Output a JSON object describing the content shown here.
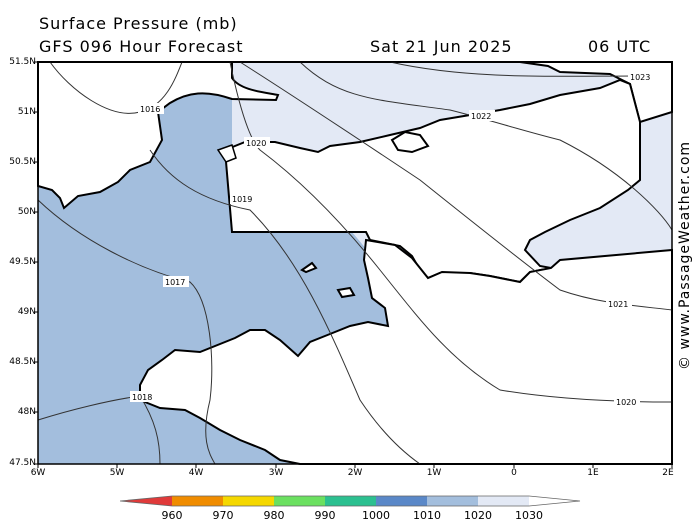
{
  "header": {
    "title": "Surface Pressure (mb)",
    "model": "GFS 096 Hour Forecast",
    "date": "Sat 21 Jun 2025",
    "time": "06 UTC"
  },
  "credit": "© www.PassageWeather.com",
  "map": {
    "lat_labels": [
      "51.5N",
      "51N",
      "50.5N",
      "50N",
      "49.5N",
      "49N",
      "48.5N",
      "48N",
      "47.5N"
    ],
    "lon_labels": [
      "6W",
      "5W",
      "4W",
      "3W",
      "2W",
      "1W",
      "0",
      "1E",
      "2E"
    ],
    "isobar_labels": [
      "1016",
      "1017",
      "1018",
      "1019",
      "1020",
      "1020",
      "1021",
      "1022",
      "1023"
    ],
    "colors": {
      "p1010": "#a3bedd",
      "p1020": "#e3e9f5",
      "land": "#ffffff",
      "coast": "#000000"
    }
  },
  "legend": {
    "labels": [
      "960",
      "970",
      "980",
      "990",
      "1000",
      "1010",
      "1020",
      "1030"
    ],
    "colors": [
      "#e03a3a",
      "#f08c00",
      "#f5d800",
      "#6be060",
      "#2cc090",
      "#5a88c8",
      "#a3bedd",
      "#e3e9f5"
    ]
  }
}
